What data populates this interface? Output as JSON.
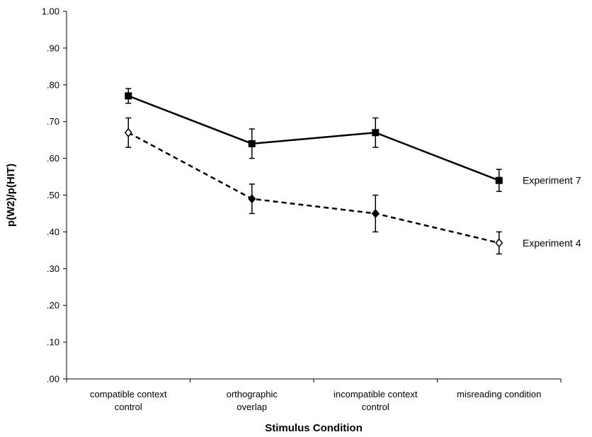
{
  "chart_data": {
    "type": "line",
    "title": "",
    "xlabel": "Stimulus Condition",
    "ylabel": "p(W2)/p(HIT)",
    "ylim": [
      0,
      1
    ],
    "yticks": [
      {
        "value": 1.0,
        "label": "1.00"
      },
      {
        "value": 0.9,
        "label": ".90"
      },
      {
        "value": 0.8,
        "label": ".80"
      },
      {
        "value": 0.7,
        "label": ".70"
      },
      {
        "value": 0.6,
        "label": ".60"
      },
      {
        "value": 0.5,
        "label": ".50"
      },
      {
        "value": 0.4,
        "label": ".40"
      },
      {
        "value": 0.3,
        "label": ".30"
      },
      {
        "value": 0.2,
        "label": ".20"
      },
      {
        "value": 0.1,
        "label": ".10"
      },
      {
        "value": 0.0,
        "label": ".00"
      }
    ],
    "categories": [
      [
        "compatible context",
        "control"
      ],
      [
        "orthographic",
        "overlap"
      ],
      [
        "incompatible context",
        "control"
      ],
      [
        "misreading condition"
      ]
    ],
    "grid": false,
    "legend": "none (series labels placed at right end of lines)",
    "series": [
      {
        "name": "Experiment 7",
        "line_style": "solid",
        "marker": "filled-square",
        "color": "#000000",
        "values": [
          0.77,
          0.64,
          0.67,
          0.54
        ],
        "err_low": [
          0.75,
          0.6,
          0.63,
          0.51
        ],
        "err_high": [
          0.79,
          0.68,
          0.71,
          0.57
        ]
      },
      {
        "name": "Experiment 4",
        "line_style": "dashed",
        "marker": "diamond",
        "color": "#000000",
        "values": [
          0.67,
          0.49,
          0.45,
          0.37
        ],
        "err_low": [
          0.63,
          0.45,
          0.4,
          0.34
        ],
        "err_high": [
          0.71,
          0.53,
          0.5,
          0.4
        ]
      }
    ]
  }
}
